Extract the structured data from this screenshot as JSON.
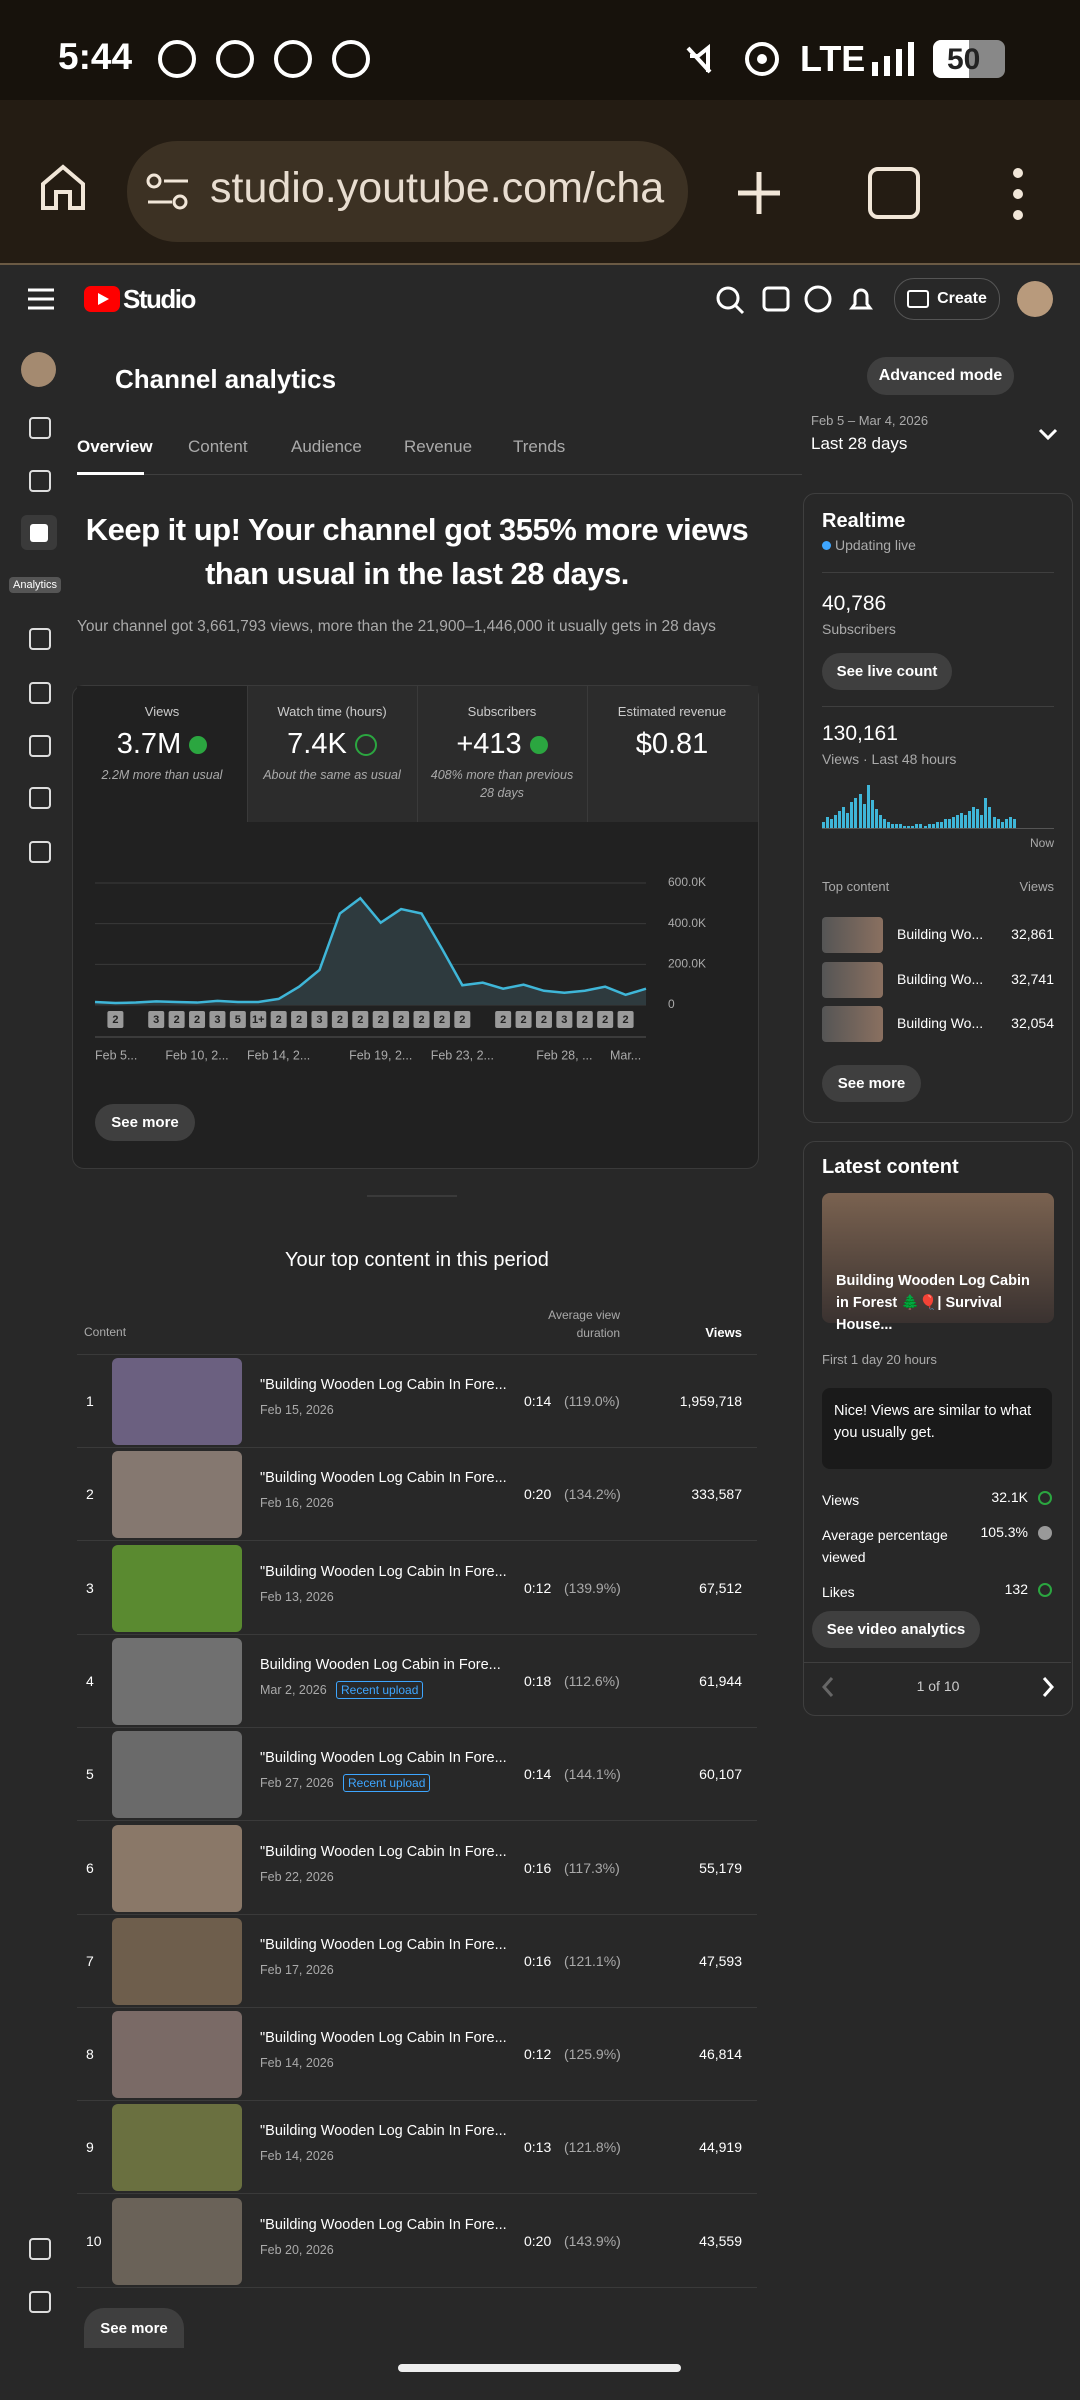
{
  "status_bar": {
    "time": "5:44",
    "network": "LTE",
    "battery": "50"
  },
  "browser": {
    "url": "studio.youtube.com/cha"
  },
  "header": {
    "logo": "Studio",
    "create": "Create"
  },
  "sidebar": {
    "selected_label": "Analytics"
  },
  "page": {
    "title": "Channel analytics",
    "advanced_mode": "Advanced mode",
    "tabs": [
      "Overview",
      "Content",
      "Audience",
      "Revenue",
      "Trends"
    ],
    "date_range": "Feb 5 – Mar 4, 2026",
    "period": "Last 28 days"
  },
  "overview": {
    "headline": "Keep it up! Your channel got 355% more views than usual in the last 28 days.",
    "summary": "Your channel got 3,661,793 views, more than the 21,900–1,446,000 it usually gets in 28 days",
    "metrics": [
      {
        "label": "Views",
        "value": "3.7M",
        "note": "2.2M more than usual"
      },
      {
        "label": "Watch time (hours)",
        "value": "7.4K",
        "note": "About the same as usual"
      },
      {
        "label": "Subscribers",
        "value": "+413",
        "note": "408% more than previous 28 days"
      },
      {
        "label": "Estimated revenue",
        "value": "$0.81"
      }
    ],
    "see_more": "See more"
  },
  "views_chart": {
    "type": "line",
    "color": "#3fb6d8",
    "categories": [
      "Feb 5...",
      null,
      null,
      null,
      null,
      "Feb 10, 2...",
      null,
      null,
      null,
      "Feb 14, 2...",
      null,
      null,
      null,
      null,
      "Feb 19, 2...",
      null,
      null,
      null,
      "Feb 23, 2...",
      null,
      null,
      null,
      null,
      "Feb 28, ...",
      null,
      null,
      "Mar...",
      null
    ],
    "values": [
      15000,
      10000,
      12000,
      18000,
      15000,
      12000,
      20000,
      15000,
      15000,
      30000,
      90000,
      172000,
      450000,
      525000,
      405000,
      472000,
      450000,
      277000,
      97000,
      110000,
      80000,
      100000,
      70000,
      60000,
      70000,
      90000,
      50000,
      80000
    ],
    "badges": [
      null,
      "2",
      null,
      "3",
      "2",
      "2",
      "3",
      "5",
      "1+",
      "2",
      "2",
      "3",
      "2",
      "2",
      "2",
      "2",
      "2",
      "2",
      "2",
      null,
      "2",
      "2",
      "2",
      "3",
      "2",
      "2",
      "2",
      null
    ],
    "ylim": [
      0,
      600000
    ],
    "yticks": [
      {
        "value": 0,
        "label": "0"
      },
      {
        "value": 200000,
        "label": "200.0K"
      },
      {
        "value": 400000,
        "label": "400.0K"
      },
      {
        "value": 600000,
        "label": "600.0K"
      }
    ],
    "grid": true
  },
  "top_content": {
    "title": "Your top content in this period",
    "columns": [
      "Content",
      "Average view duration",
      "Views"
    ],
    "rows": [
      {
        "rank": "1",
        "title": "\"Building Wooden Log Cabin In Fore...",
        "date": "Feb 15, 2026",
        "duration": "0:14",
        "percent": "(119.0%)",
        "views": "1,959,718"
      },
      {
        "rank": "2",
        "title": "\"Building Wooden Log Cabin In Fore...",
        "date": "Feb 16, 2026",
        "duration": "0:20",
        "percent": "(134.2%)",
        "views": "333,587"
      },
      {
        "rank": "3",
        "title": "\"Building Wooden Log Cabin In Fore...",
        "date": "Feb 13, 2026",
        "duration": "0:12",
        "percent": "(139.9%)",
        "views": "67,512"
      },
      {
        "rank": "4",
        "title": "Building Wooden Log Cabin in Fore...",
        "date": "Mar 2, 2026",
        "badge": "Recent upload",
        "duration": "0:18",
        "percent": "(112.6%)",
        "views": "61,944"
      },
      {
        "rank": "5",
        "title": "\"Building Wooden Log Cabin In Fore...",
        "date": "Feb 27, 2026",
        "badge": "Recent upload",
        "duration": "0:14",
        "percent": "(144.1%)",
        "views": "60,107"
      },
      {
        "rank": "6",
        "title": "\"Building Wooden Log Cabin In Fore...",
        "date": "Feb 22, 2026",
        "duration": "0:16",
        "percent": "(117.3%)",
        "views": "55,179"
      },
      {
        "rank": "7",
        "title": "\"Building Wooden Log Cabin In Fore...",
        "date": "Feb 17, 2026",
        "duration": "0:16",
        "percent": "(121.1%)",
        "views": "47,593"
      },
      {
        "rank": "8",
        "title": "\"Building Wooden Log Cabin In Fore...",
        "date": "Feb 14, 2026",
        "duration": "0:12",
        "percent": "(125.9%)",
        "views": "46,814"
      },
      {
        "rank": "9",
        "title": "\"Building Wooden Log Cabin In Fore...",
        "date": "Feb 14, 2026",
        "duration": "0:13",
        "percent": "(121.8%)",
        "views": "44,919"
      },
      {
        "rank": "10",
        "title": "\"Building Wooden Log Cabin In Fore...",
        "date": "Feb 20, 2026",
        "duration": "0:20",
        "percent": "(143.9%)",
        "views": "43,559"
      }
    ],
    "see_more": "See more"
  },
  "realtime": {
    "title": "Realtime",
    "status": "Updating live",
    "subscribers": "40,786",
    "subscribers_label": "Subscribers",
    "live_count_button": "See live count",
    "views": "130,161",
    "views_label": "Views · Last 48 hours",
    "bars": [
      3,
      5,
      4,
      6,
      8,
      10,
      7,
      12,
      14,
      16,
      11,
      20,
      13,
      9,
      6,
      4,
      3,
      2,
      2,
      2,
      1,
      1,
      1,
      2,
      2,
      1,
      2,
      2,
      3,
      3,
      4,
      4,
      5,
      6,
      7,
      6,
      8,
      10,
      9,
      6,
      14,
      10,
      5,
      4,
      3,
      4,
      5,
      4
    ],
    "now_label": "Now",
    "top_content_label": "Top content",
    "views_column": "Views",
    "top_content": [
      {
        "title": "Building Wo...",
        "views": "32,861"
      },
      {
        "title": "Building Wo...",
        "views": "32,741"
      },
      {
        "title": "Building Wo...",
        "views": "32,054"
      }
    ],
    "see_more": "See more"
  },
  "latest_content": {
    "title": "Latest content",
    "video_title": "Building Wooden Log Cabin in Forest 🌲🎈| Survival House...",
    "age": "First 1 day 20 hours",
    "insight": "Nice! Views are similar to what you usually get.",
    "stats": [
      {
        "label": "Views",
        "value": "32.1K"
      },
      {
        "label": "Average percentage viewed",
        "value": "105.3%"
      },
      {
        "label": "Likes",
        "value": "132"
      }
    ],
    "button": "See video analytics",
    "pager": "1 of 10"
  }
}
